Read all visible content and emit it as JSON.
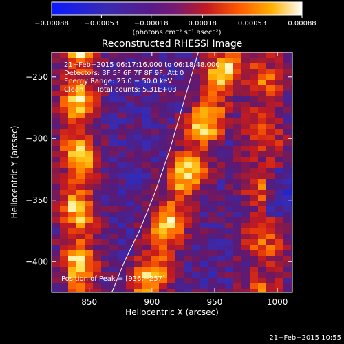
{
  "chart_data": {
    "type": "heatmap",
    "title": "Reconstructed RHESSI Image",
    "xlabel": "Heliocentric X (arcsec)",
    "ylabel": "Heliocentric Y (arcsec)",
    "xlim": [
      820,
      1012
    ],
    "ylim": [
      -425,
      -230
    ],
    "x_ticks": [
      850,
      900,
      950,
      1000
    ],
    "y_ticks": [
      -250,
      -300,
      -350,
      -400
    ],
    "x_tick_labels": [
      "850",
      "900",
      "950",
      "1000"
    ],
    "y_tick_labels": [
      "−250",
      "−300",
      "−350",
      "−400"
    ],
    "colorbar": {
      "min": -0.00088,
      "max": 0.00088,
      "ticks": [
        -0.00088,
        -0.00053,
        -0.00018,
        0.00018,
        0.00053,
        0.00088
      ],
      "tick_labels": [
        "−0.00088",
        "−0.00053",
        "−0.00018",
        "0.00018",
        "0.00053",
        "0.00088"
      ],
      "units": "(photons cm⁻² s⁻¹ asec⁻²)"
    },
    "annotations": [
      "21−Feb−2015 06:17:16.000 to 06:18:48.000",
      "Detectors: 3F 5F 6F 7F 8F 9F, Att 0",
      "Energy Range: 25.0 − 50.0 keV",
      "Clean      Total counts: 5.31E+03"
    ],
    "peak_label": "Position of Peak = [936,−257]",
    "limb_x": [
      868,
      878,
      890,
      902,
      914,
      926,
      937
    ],
    "limb_y": [
      -425,
      -400,
      -375,
      -345,
      -310,
      -268,
      -230
    ],
    "grid": false,
    "legend": "none"
  },
  "footer": {
    "timestamp": "21−Feb−2015 10:55"
  },
  "colors": {
    "background": "#000000",
    "foreground": "#ffffff"
  }
}
